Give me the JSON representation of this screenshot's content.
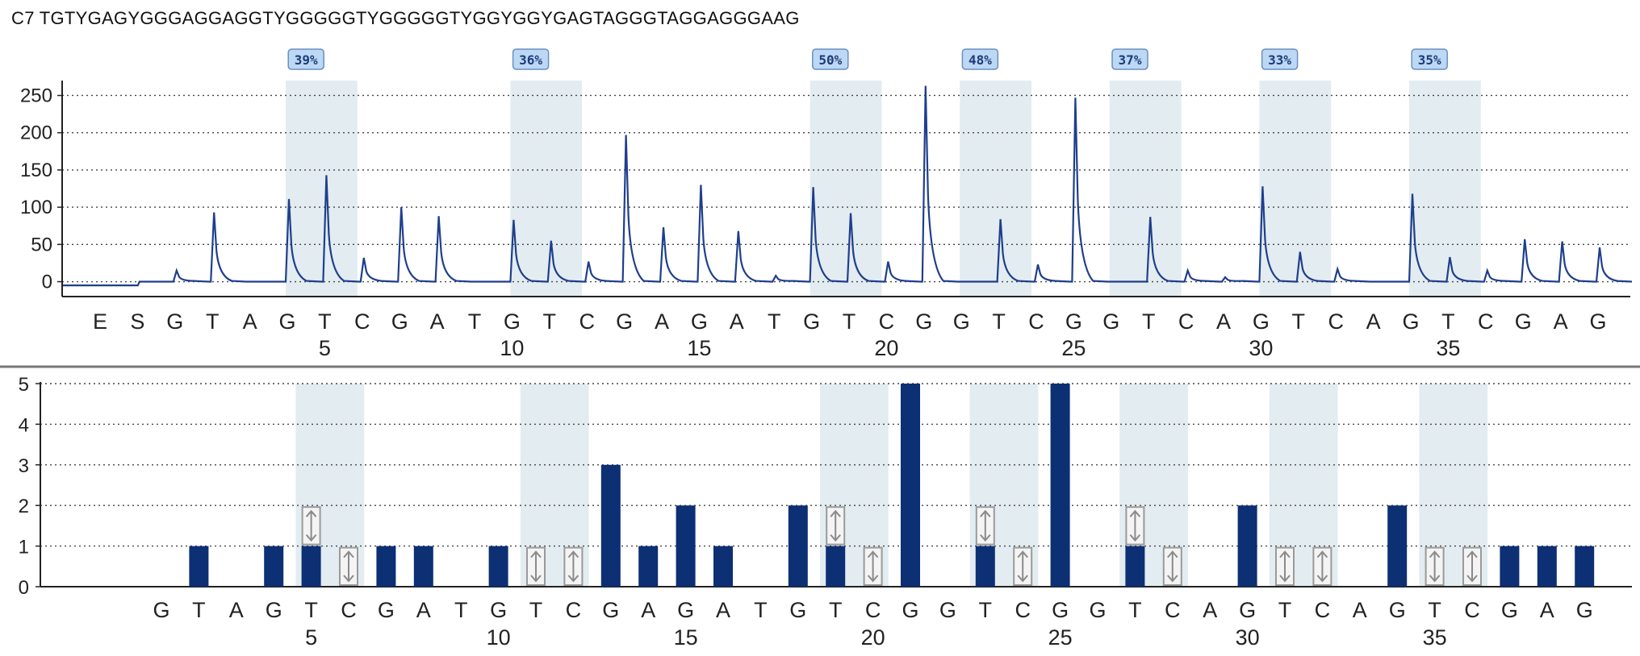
{
  "title": "C7  TGTYGAGYGGGAGGAGGTYGGGGGTYGGGGGTYGGYGGYGAGTAGGGTAGGAGGGAAG",
  "chart_data": [
    {
      "type": "line",
      "name": "pyrogram",
      "ylim": [
        -20,
        270
      ],
      "yticks": [
        0,
        50,
        100,
        150,
        200,
        250
      ],
      "grid": true,
      "dispensation": [
        "E",
        "S",
        "G",
        "T",
        "A",
        "G",
        "T",
        "C",
        "G",
        "A",
        "T",
        "G",
        "T",
        "C",
        "G",
        "A",
        "G",
        "A",
        "T",
        "G",
        "T",
        "C",
        "G",
        "G",
        "T",
        "C",
        "G",
        "G",
        "T",
        "C",
        "A",
        "G",
        "T",
        "C",
        "A",
        "G",
        "T",
        "C",
        "G",
        "A",
        "G"
      ],
      "position_labels": [
        "5",
        "10",
        "15",
        "20",
        "25",
        "30",
        "35"
      ],
      "peak_heights": [
        0,
        0,
        15,
        93,
        0,
        111,
        143,
        32,
        100,
        88,
        0,
        83,
        55,
        27,
        197,
        73,
        130,
        68,
        8,
        127,
        92,
        27,
        263,
        0,
        84,
        23,
        247,
        0,
        87,
        15,
        6,
        128,
        40,
        17,
        0,
        118,
        33,
        15,
        57,
        54,
        46
      ],
      "cpg_sites": [
        {
          "position": 7,
          "methylation": "39%"
        },
        {
          "position": 13,
          "methylation": "36%"
        },
        {
          "position": 21,
          "methylation": "50%"
        },
        {
          "position": 25,
          "methylation": "48%"
        },
        {
          "position": 29,
          "methylation": "37%"
        },
        {
          "position": 33,
          "methylation": "33%"
        },
        {
          "position": 37,
          "methylation": "35%"
        }
      ]
    },
    {
      "type": "bar",
      "name": "histogram",
      "ylim": [
        0,
        5
      ],
      "yticks": [
        0,
        1,
        2,
        3,
        4,
        5
      ],
      "grid": true,
      "categories": [
        "G",
        "T",
        "A",
        "G",
        "T",
        "C",
        "G",
        "A",
        "T",
        "G",
        "T",
        "C",
        "G",
        "A",
        "G",
        "A",
        "T",
        "G",
        "T",
        "C",
        "G",
        "G",
        "T",
        "C",
        "G",
        "G",
        "T",
        "C",
        "A",
        "G",
        "T",
        "C",
        "A",
        "G",
        "T",
        "C",
        "G",
        "A",
        "G"
      ],
      "position_labels": [
        "5",
        "10",
        "15",
        "20",
        "25",
        "30",
        "35"
      ],
      "values": [
        0,
        1,
        0,
        1,
        1,
        0,
        1,
        1,
        0,
        1,
        0,
        0,
        3,
        1,
        2,
        1,
        0,
        2,
        1,
        0,
        5,
        0,
        1,
        0,
        5,
        0,
        1,
        0,
        0,
        2,
        0,
        0,
        0,
        2,
        0,
        0,
        1,
        1,
        1
      ],
      "variable_positions": [
        5,
        6,
        11,
        12,
        19,
        20,
        23,
        24,
        27,
        28,
        31,
        32,
        35,
        36
      ]
    }
  ]
}
